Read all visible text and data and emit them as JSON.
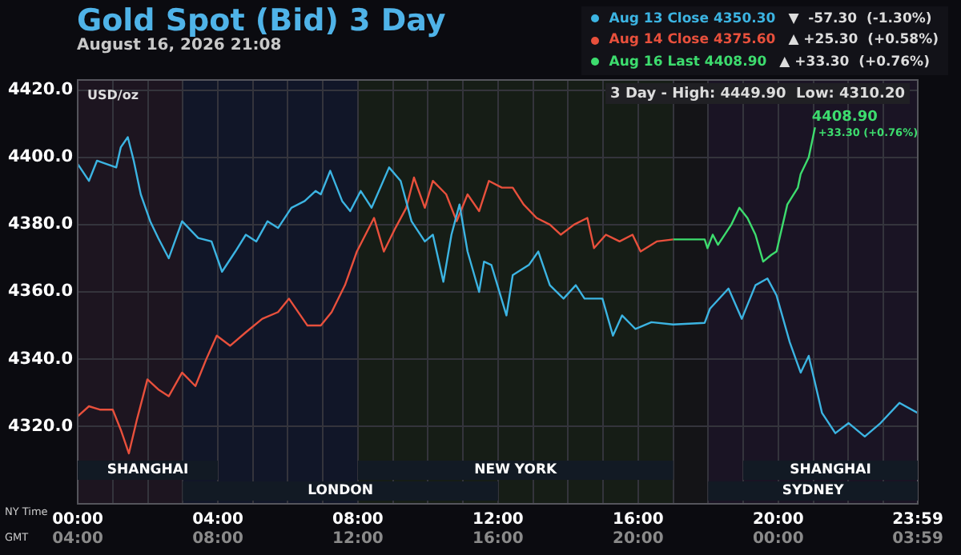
{
  "chart_data": {
    "type": "line",
    "title": "Gold Spot (Bid) 3 Day",
    "subtitle": "August 16, 2026 21:08",
    "ylabel": "USD/oz",
    "xlabel": "NY Time",
    "x2label": "GMT",
    "xlim": [
      0,
      23.983
    ],
    "xticks": [
      {
        "value": 0,
        "label": "00:00"
      },
      {
        "value": 1,
        "label": null
      },
      {
        "value": 2,
        "label": null
      },
      {
        "value": 3,
        "label": null
      },
      {
        "value": 4,
        "label": "04:00"
      },
      {
        "value": 5,
        "label": null
      },
      {
        "value": 6,
        "label": null
      },
      {
        "value": 7,
        "label": null
      },
      {
        "value": 8,
        "label": "08:00"
      },
      {
        "value": 9,
        "label": null
      },
      {
        "value": 10,
        "label": null
      },
      {
        "value": 11,
        "label": null
      },
      {
        "value": 12,
        "label": "12:00"
      },
      {
        "value": 13,
        "label": null
      },
      {
        "value": 14,
        "label": null
      },
      {
        "value": 15,
        "label": null
      },
      {
        "value": 16,
        "label": "16:00"
      },
      {
        "value": 17,
        "label": null
      },
      {
        "value": 18,
        "label": null
      },
      {
        "value": 19,
        "label": null
      },
      {
        "value": 20,
        "label": "20:00"
      },
      {
        "value": 21,
        "label": null
      },
      {
        "value": 22,
        "label": null
      },
      {
        "value": 23,
        "label": null
      },
      {
        "value": 23.983,
        "label": "23:59"
      }
    ],
    "x2lim": [
      "2026-08-16T04:00",
      "2026-08-17T03:59"
    ],
    "x2ticks": [
      {
        "value": "2026-08-16T04:00",
        "label": "04:00"
      },
      {
        "value": "2026-08-16T08:00",
        "label": "08:00"
      },
      {
        "value": "2026-08-16T12:00",
        "label": "12:00"
      },
      {
        "value": "2026-08-16T16:00",
        "label": "16:00"
      },
      {
        "value": "2026-08-16T20:00",
        "label": "20:00"
      },
      {
        "value": "2026-08-17T00:00",
        "label": "00:00"
      },
      {
        "value": "2026-08-17T03:59",
        "label": "03:59"
      }
    ],
    "ylim": [
      4297,
      4423
    ],
    "yticks": [
      {
        "value": 4320,
        "label": "4320.0"
      },
      {
        "value": 4340,
        "label": "4340.0"
      },
      {
        "value": 4360,
        "label": "4360.0"
      },
      {
        "value": 4380,
        "label": "4380.0"
      },
      {
        "value": 4400,
        "label": "4400.0"
      },
      {
        "value": 4420,
        "label": "4420.0"
      }
    ],
    "grid": true,
    "legend": "top right",
    "marker": "none",
    "line_style": "solid",
    "series": [
      {
        "name": "Aug 13 Close 4350.30",
        "color": "#3cb4e2",
        "x": [
          0,
          0.32,
          0.55,
          1.1,
          1.23,
          1.43,
          1.6,
          1.8,
          2.07,
          2.3,
          2.6,
          2.98,
          3.44,
          3.82,
          4.12,
          4.5,
          4.8,
          5.1,
          5.42,
          5.72,
          6.1,
          6.48,
          6.79,
          6.94,
          7.21,
          7.55,
          7.78,
          8.08,
          8.39,
          8.89,
          9.22,
          9.53,
          9.91,
          10.14,
          10.44,
          10.67,
          10.9,
          11.13,
          11.46,
          11.6,
          11.81,
          12.24,
          12.42,
          12.88,
          13.15,
          13.48,
          13.87,
          14.22,
          14.47,
          14.98,
          15.28,
          15.54,
          15.92,
          16.38,
          17,
          17.9,
          18.05,
          18.58,
          18.96,
          19.35,
          19.69,
          19.95,
          20.33,
          20.64,
          20.87,
          21.25,
          21.63,
          22.01,
          22.47,
          22.92,
          23.46,
          23.983
        ],
        "values": [
          4398,
          4393,
          4399,
          4397,
          4403,
          4406,
          4399,
          4389,
          4381,
          4376,
          4370,
          4381,
          4376,
          4375,
          4366,
          4372,
          4377,
          4375,
          4381,
          4379,
          4385,
          4387,
          4390,
          4389,
          4396,
          4387,
          4384,
          4390,
          4385,
          4397,
          4393,
          4381,
          4375,
          4377,
          4363,
          4377,
          4386,
          4372,
          4360,
          4369,
          4368,
          4353,
          4365,
          4368,
          4372,
          4362,
          4358,
          4362,
          4358,
          4358,
          4347,
          4353,
          4349,
          4351,
          4350.3,
          4350.8,
          4355,
          4361,
          4352,
          4362,
          4364,
          4359,
          4345,
          4336,
          4341,
          4324,
          4318,
          4321,
          4317,
          4321,
          4327,
          4324
        ]
      },
      {
        "name": "Aug 14 Close 4375.60",
        "color": "#e8503c",
        "x": [
          0,
          0.32,
          0.63,
          1,
          1.23,
          1.46,
          1.69,
          1.99,
          2.3,
          2.6,
          2.98,
          3.36,
          3.67,
          3.97,
          4.35,
          4.8,
          5.27,
          5.72,
          6.03,
          6.56,
          6.94,
          7.25,
          7.63,
          7.97,
          8.46,
          8.74,
          9.07,
          9.38,
          9.6,
          9.91,
          10.14,
          10.52,
          10.82,
          11.13,
          11.46,
          11.74,
          12.11,
          12.42,
          12.73,
          13.1,
          13.48,
          13.79,
          14.17,
          14.55,
          14.74,
          15.08,
          15.47,
          15.84,
          16.07,
          16.53,
          17
        ],
        "values": [
          4323,
          4326,
          4325,
          4325,
          4319,
          4312,
          4322,
          4334,
          4331,
          4329,
          4336,
          4332,
          4340,
          4347,
          4344,
          4348,
          4352,
          4354,
          4358,
          4350,
          4350,
          4354,
          4362,
          4372,
          4382,
          4372,
          4379,
          4385,
          4394,
          4385,
          4393,
          4389,
          4381,
          4389,
          4384,
          4393,
          4391,
          4391,
          4386,
          4382,
          4380,
          4377,
          4380,
          4382,
          4373,
          4377,
          4375,
          4377,
          4372,
          4375,
          4375.6
        ]
      },
      {
        "name": "Aug 16 Last 4408.90",
        "color": "#3ddc6e",
        "x": [
          17,
          17.9,
          17.98,
          18.13,
          18.28,
          18.66,
          18.89,
          19.12,
          19.35,
          19.57,
          19.8,
          19.95,
          20.26,
          20.56,
          20.64,
          20.87,
          21.05
        ],
        "values": [
          4375.6,
          4375.6,
          4373,
          4377,
          4374,
          4380,
          4385,
          4382,
          4377,
          4369,
          4371,
          4372,
          4386,
          4391,
          4395,
          4400,
          4408.9
        ]
      }
    ],
    "bands": [
      {
        "axis": "x",
        "from": 0,
        "to": 3,
        "color": "#1d1520"
      },
      {
        "axis": "x",
        "from": 3,
        "to": 8,
        "color": "#111628"
      },
      {
        "axis": "x",
        "from": 8,
        "to": 17,
        "color": "#161d16"
      },
      {
        "axis": "x",
        "from": 17,
        "to": 18,
        "color": "#141417"
      },
      {
        "axis": "x",
        "from": 18,
        "to": 23.983,
        "color": "#1a1424"
      },
      {
        "axis": "x",
        "from": 0,
        "to": 4,
        "label": "SHANGHAI",
        "color": "#121a24"
      },
      {
        "axis": "x",
        "from": 8,
        "to": 17,
        "label": "NEW YORK",
        "color": "#121a24"
      },
      {
        "axis": "x",
        "from": 19,
        "to": 23.983,
        "label": "SHANGHAI",
        "color": "#121a24"
      },
      {
        "axis": "x",
        "from": 3,
        "to": 12,
        "label": "LONDON",
        "color": "#121a24"
      },
      {
        "axis": "x",
        "from": 18,
        "to": 23.983,
        "label": "SYDNEY",
        "color": "#121a24"
      }
    ],
    "annotations": [
      "▼  -57.30  (-1.30%)",
      "▲ +25.30  (+0.58%)",
      "▲ +33.30  (+0.76%)",
      "3 Day - High: 4449.90  Low: 4310.20",
      {
        "text": "4408.90",
        "x": 21.05,
        "y": 4408.9
      },
      {
        "text": "+33.30 (+0.76%)",
        "x": 21.05,
        "y": 4408.9
      }
    ]
  }
}
